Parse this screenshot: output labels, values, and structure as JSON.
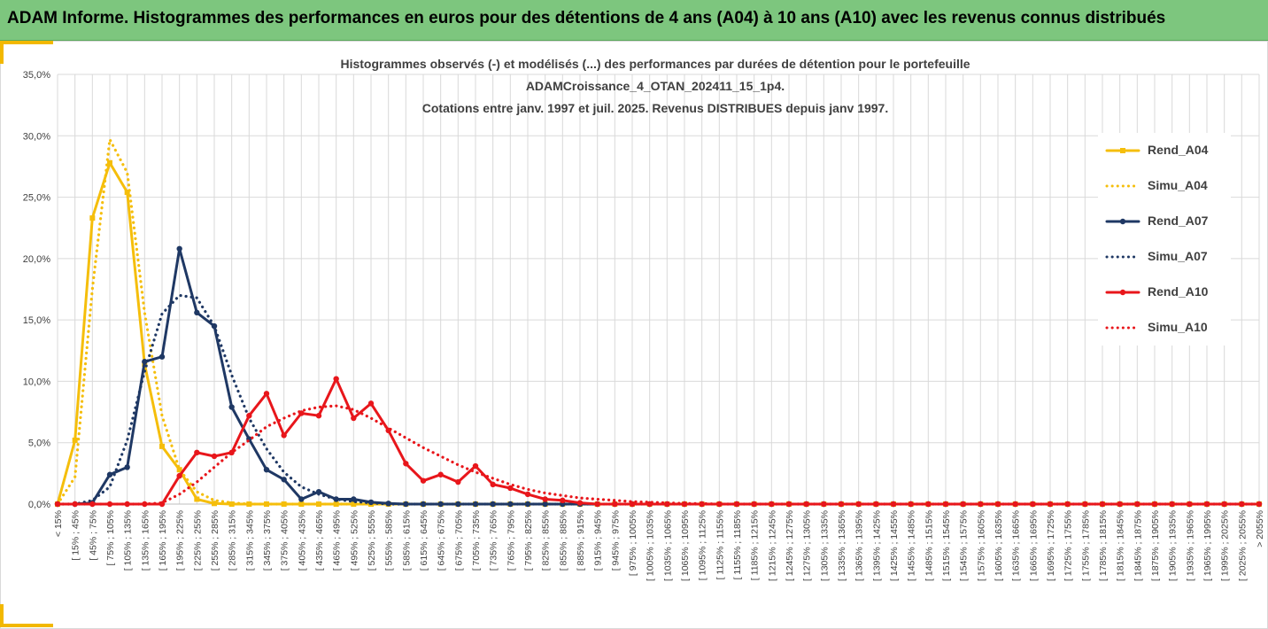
{
  "header": {
    "title": "ADAM Informe. Histogrammes des performances en euros pour des détentions de 4 ans (A04) à 10 ans (A10) avec les revenus connus distribués"
  },
  "colors": {
    "banner": "#7dc67e",
    "A04": "#f5be0b",
    "A07": "#1f3864",
    "A10": "#e8161b",
    "grid": "#d9d9d9"
  },
  "chart_data": {
    "type": "line",
    "title_lines": [
      "Histogrammes observés (-) et modélisés (...) des performances par durées de détention pour le portefeuille",
      "ADAMCroissance_4_OTAN_202411_15_1p4.",
      "Cotations entre janv. 1997 et juil. 2025. Revenus DISTRIBUES depuis janv 1997."
    ],
    "ylim": [
      0,
      35
    ],
    "yticks": [
      "0,0%",
      "5,0%",
      "10,0%",
      "15,0%",
      "20,0%",
      "25,0%",
      "30,0%",
      "35,0%"
    ],
    "grid": true,
    "legend_position": "right",
    "categories": [
      "< 15%",
      "[ 15% ; 45%",
      "[ 45% ; 75%",
      "[ 75% ; 105%",
      "[ 105% ; 135%",
      "[ 135% ; 165%",
      "[ 165% ; 195%",
      "[ 195% ; 225%",
      "[ 225% ; 255%",
      "[ 255% ; 285%",
      "[ 285% ; 315%",
      "[ 315% ; 345%",
      "[ 345% ; 375%",
      "[ 375% ; 405%",
      "[ 405% ; 435%",
      "[ 435% ; 465%",
      "[ 465% ; 495%",
      "[ 495% ; 525%",
      "[ 525% ; 555%",
      "[ 555% ; 585%",
      "[ 585% ; 615%",
      "[ 615% ; 645%",
      "[ 645% ; 675%",
      "[ 675% ; 705%",
      "[ 705% ; 735%",
      "[ 735% ; 765%",
      "[ 765% ; 795%",
      "[ 795% ; 825%",
      "[ 825% ; 855%",
      "[ 855% ; 885%",
      "[ 885% ; 915%",
      "[ 915% ; 945%",
      "[ 945% ; 975%",
      "[ 975% ; 1005%",
      "[ 1005% ; 1035%",
      "[ 1035% ; 1065%",
      "[ 1065% ; 1095%",
      "[ 1095% ; 1125%",
      "[ 1125% ; 1155%",
      "[ 1155% ; 1185%",
      "[ 1185% ; 1215%",
      "[ 1215% ; 1245%",
      "[ 1245% ; 1275%",
      "[ 1275% ; 1305%",
      "[ 1305% ; 1335%",
      "[ 1335% ; 1365%",
      "[ 1365% ; 1395%",
      "[ 1395% ; 1425%",
      "[ 1425% ; 1455%",
      "[ 1455% ; 1485%",
      "[ 1485% ; 1515%",
      "[ 1515% ; 1545%",
      "[ 1545% ; 1575%",
      "[ 1575% ; 1605%",
      "[ 1605% ; 1635%",
      "[ 1635% ; 1665%",
      "[ 1665% ; 1695%",
      "[ 1695% ; 1725%",
      "[ 1725% ; 1755%",
      "[ 1755% ; 1785%",
      "[ 1785% ; 1815%",
      "[ 1815% ; 1845%",
      "[ 1845% ; 1875%",
      "[ 1875% ; 1905%",
      "[ 1905% ; 1935%",
      "[ 1935% ; 1965%",
      "[ 1965% ; 1995%",
      "[ 1995% ; 2025%",
      "[ 2025% ; 2055%",
      "> 2055%"
    ],
    "series": [
      {
        "name": "Rend_A04",
        "style": "solid",
        "color": "#f5be0b",
        "values": [
          0,
          5.2,
          23.3,
          27.8,
          25.4,
          11.4,
          4.7,
          2.8,
          0.4,
          0.05,
          0,
          0,
          0,
          0,
          0,
          0,
          0,
          0,
          0,
          0,
          0,
          0,
          0,
          0,
          0,
          0,
          0,
          0,
          0,
          0,
          0,
          0,
          0,
          0,
          0,
          0,
          0,
          0,
          0,
          0,
          0,
          0,
          0,
          0,
          0,
          0,
          0,
          0,
          0,
          0,
          0,
          0,
          0,
          0,
          0,
          0,
          0,
          0,
          0,
          0,
          0,
          0,
          0,
          0,
          0,
          0,
          0,
          0,
          0,
          0
        ]
      },
      {
        "name": "Simu_A04",
        "style": "dotted",
        "color": "#f5be0b",
        "values": [
          0,
          2.2,
          17.5,
          29.7,
          27.0,
          15.6,
          7.2,
          2.8,
          1.0,
          0.3,
          0.1,
          0,
          0,
          0,
          0,
          0,
          0,
          0,
          0,
          0,
          0,
          0,
          0,
          0,
          0,
          0,
          0,
          0,
          0,
          0,
          0,
          0,
          0,
          0,
          0,
          0,
          0,
          0,
          0,
          0,
          0,
          0,
          0,
          0,
          0,
          0,
          0,
          0,
          0,
          0,
          0,
          0,
          0,
          0,
          0,
          0,
          0,
          0,
          0,
          0,
          0,
          0,
          0,
          0,
          0,
          0,
          0,
          0,
          0,
          0
        ]
      },
      {
        "name": "Rend_A07",
        "style": "solid",
        "color": "#1f3864",
        "values": [
          0,
          0,
          0.1,
          2.4,
          3.0,
          11.6,
          12.0,
          20.8,
          15.6,
          14.5,
          7.9,
          5.3,
          2.8,
          2.0,
          0.4,
          1.0,
          0.4,
          0.4,
          0.15,
          0.05,
          0,
          0,
          0,
          0,
          0,
          0,
          0,
          0,
          0,
          0,
          0,
          0,
          0,
          0,
          0,
          0,
          0,
          0,
          0,
          0,
          0,
          0,
          0,
          0,
          0,
          0,
          0,
          0,
          0,
          0,
          0,
          0,
          0,
          0,
          0,
          0,
          0,
          0,
          0,
          0,
          0,
          0,
          0,
          0,
          0,
          0,
          0,
          0,
          0,
          0
        ]
      },
      {
        "name": "Simu_A07",
        "style": "dotted",
        "color": "#1f3864",
        "values": [
          0,
          0,
          0.3,
          1.4,
          5.2,
          10.8,
          15.5,
          17.0,
          16.8,
          14.5,
          10.5,
          7.0,
          4.5,
          2.6,
          1.4,
          0.8,
          0.4,
          0.2,
          0.1,
          0,
          0,
          0,
          0,
          0,
          0,
          0,
          0,
          0,
          0,
          0,
          0,
          0,
          0,
          0,
          0,
          0,
          0,
          0,
          0,
          0,
          0,
          0,
          0,
          0,
          0,
          0,
          0,
          0,
          0,
          0,
          0,
          0,
          0,
          0,
          0,
          0,
          0,
          0,
          0,
          0,
          0,
          0,
          0,
          0,
          0,
          0,
          0,
          0,
          0,
          0
        ]
      },
      {
        "name": "Rend_A10",
        "style": "solid",
        "color": "#e8161b",
        "values": [
          0,
          0,
          0,
          0,
          0,
          0,
          0,
          2.3,
          4.2,
          3.9,
          4.2,
          7.2,
          9.0,
          5.6,
          7.4,
          7.2,
          10.2,
          7.0,
          8.2,
          6.0,
          3.3,
          1.9,
          2.4,
          1.8,
          3.1,
          1.6,
          1.3,
          0.8,
          0.4,
          0.3,
          0.1,
          0,
          0,
          0,
          0,
          0,
          0,
          0,
          0,
          0,
          0,
          0,
          0,
          0,
          0,
          0,
          0,
          0,
          0,
          0,
          0,
          0,
          0,
          0,
          0,
          0,
          0,
          0,
          0,
          0,
          0,
          0,
          0,
          0,
          0,
          0,
          0,
          0,
          0,
          0
        ]
      },
      {
        "name": "Simu_A10",
        "style": "dotted",
        "color": "#e8161b",
        "values": [
          0,
          0,
          0,
          0,
          0,
          0,
          0.1,
          0.8,
          1.8,
          3.0,
          4.2,
          5.2,
          6.3,
          7.0,
          7.6,
          7.9,
          8.0,
          7.7,
          7.0,
          6.2,
          5.4,
          4.6,
          3.9,
          3.2,
          2.6,
          2.1,
          1.6,
          1.2,
          0.9,
          0.7,
          0.5,
          0.4,
          0.3,
          0.2,
          0.15,
          0.1,
          0.05,
          0.05,
          0,
          0,
          0,
          0,
          0,
          0,
          0,
          0,
          0,
          0,
          0,
          0,
          0,
          0,
          0,
          0,
          0,
          0,
          0,
          0,
          0,
          0,
          0,
          0,
          0,
          0,
          0,
          0,
          0,
          0,
          0,
          0
        ]
      }
    ]
  }
}
